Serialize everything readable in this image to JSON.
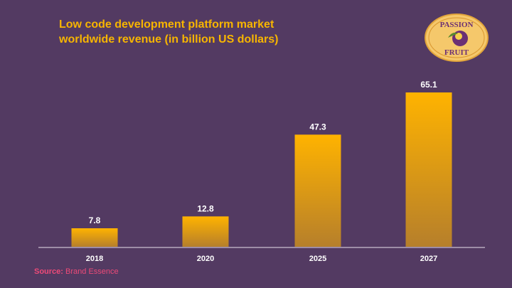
{
  "chart_data": {
    "type": "bar",
    "title": "Low code development platform market worldwide revenue (in billion US dollars)",
    "categories": [
      "2018",
      "2020",
      "2025",
      "2027"
    ],
    "values": [
      7.8,
      12.8,
      47.3,
      65.1
    ],
    "value_labels": [
      "7.8",
      "12.8",
      "47.3",
      "65.1"
    ],
    "xlabel": "",
    "ylabel": "",
    "ylim": [
      0,
      65.1
    ],
    "grid": false,
    "legend": "none"
  },
  "logo": {
    "line1": "PASSION",
    "line2": "FRUIT"
  },
  "source": {
    "label": "Source:",
    "text": "Brand Essence"
  },
  "colors": {
    "background": "#533a62",
    "title": "#f7b500",
    "bar_top": "#ffb300",
    "bar_bottom": "#b67f2b",
    "source": "#ee4a78"
  }
}
